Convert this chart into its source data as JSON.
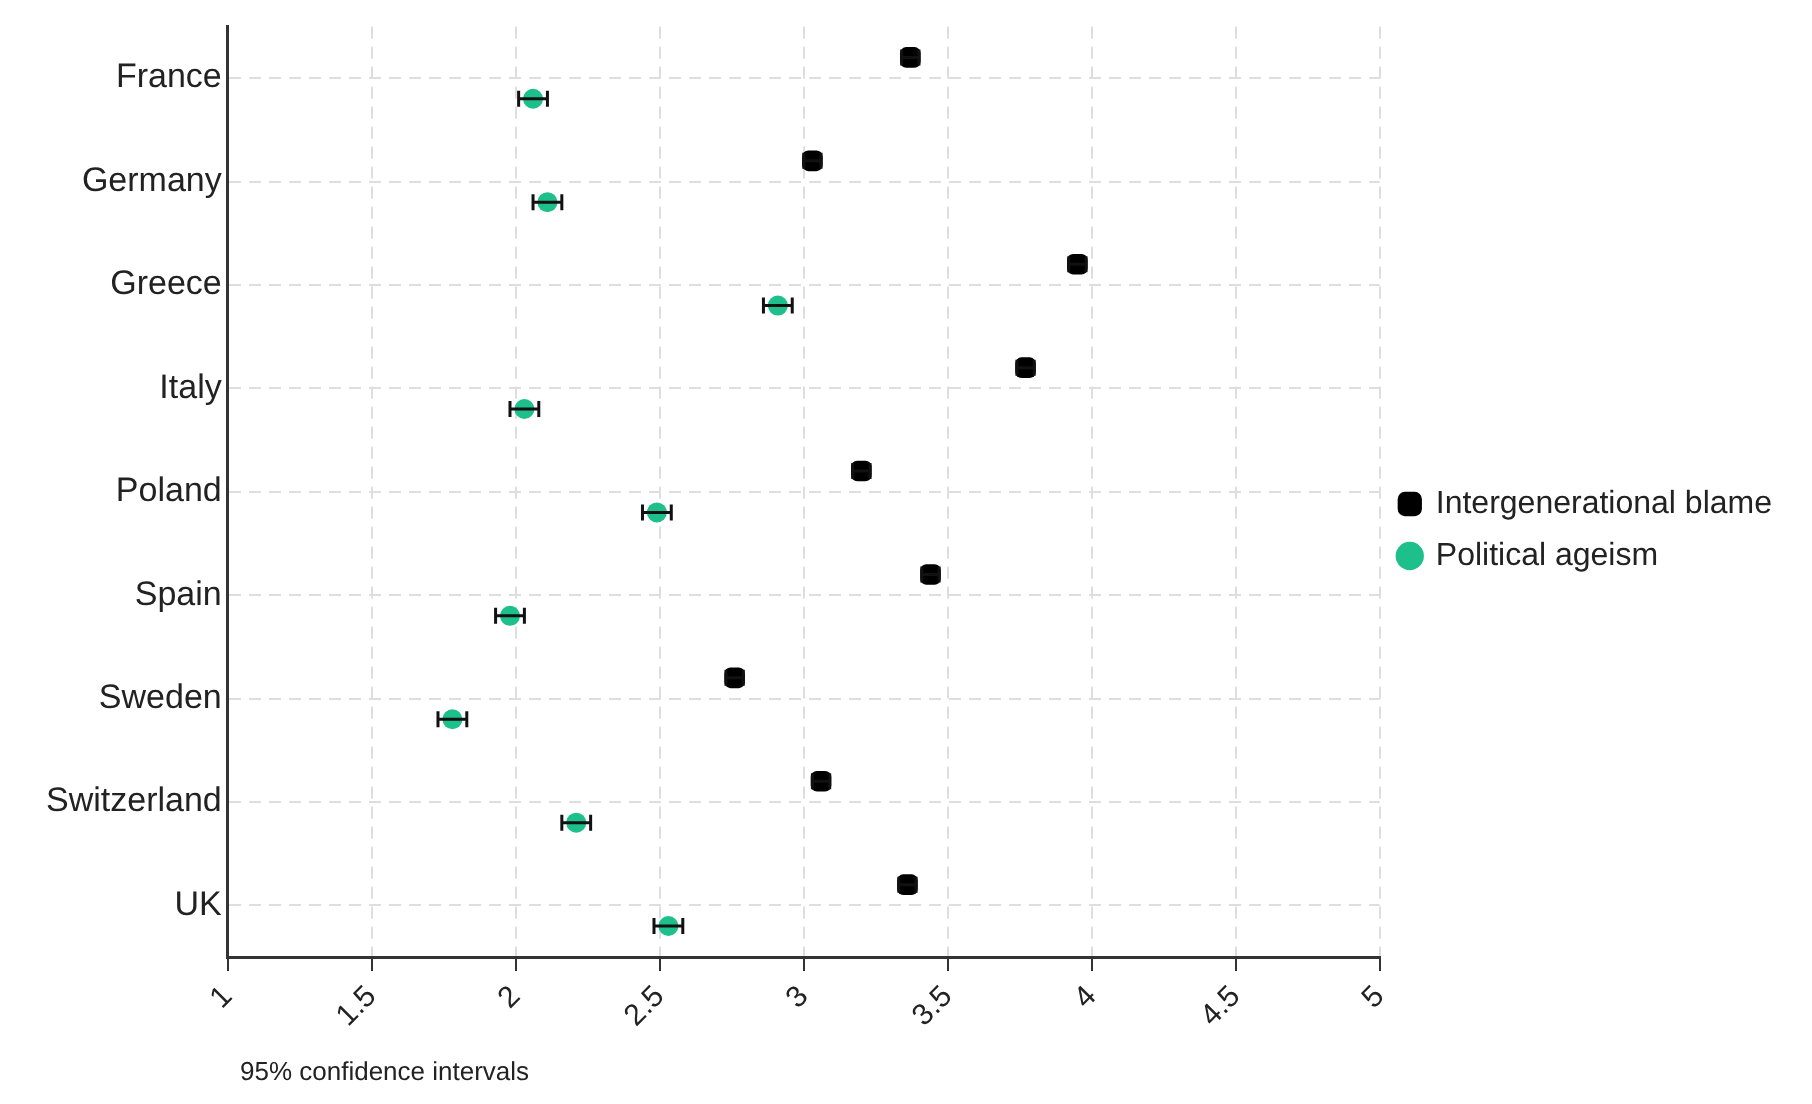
{
  "chart_data": {
    "type": "scatter",
    "orientation": "horizontal",
    "categories": [
      "France",
      "Germany",
      "Greece",
      "Italy",
      "Poland",
      "Spain",
      "Sweden",
      "Switzerland",
      "UK"
    ],
    "series": [
      {
        "name": "Intergenerational blame",
        "color": "#000000",
        "marker": "square",
        "values": [
          3.37,
          3.03,
          3.95,
          3.77,
          3.2,
          3.44,
          2.76,
          3.06,
          3.36
        ],
        "errors": [
          0.03,
          0.03,
          0.03,
          0.03,
          0.03,
          0.03,
          0.03,
          0.03,
          0.03
        ]
      },
      {
        "name": "Political ageism",
        "color": "#1dbf8a",
        "marker": "circle",
        "values": [
          2.06,
          2.11,
          2.91,
          2.03,
          2.49,
          1.98,
          1.78,
          2.21,
          2.53
        ],
        "errors": [
          0.05,
          0.05,
          0.05,
          0.05,
          0.05,
          0.05,
          0.05,
          0.05,
          0.05
        ]
      }
    ],
    "xlim": [
      1,
      5
    ],
    "xticks": [
      1,
      1.5,
      2,
      2.5,
      3,
      3.5,
      4,
      4.5,
      5
    ],
    "grid": true,
    "legend": "right",
    "line_style": "dashed",
    "annotations": [
      "95% confidence intervals"
    ]
  }
}
